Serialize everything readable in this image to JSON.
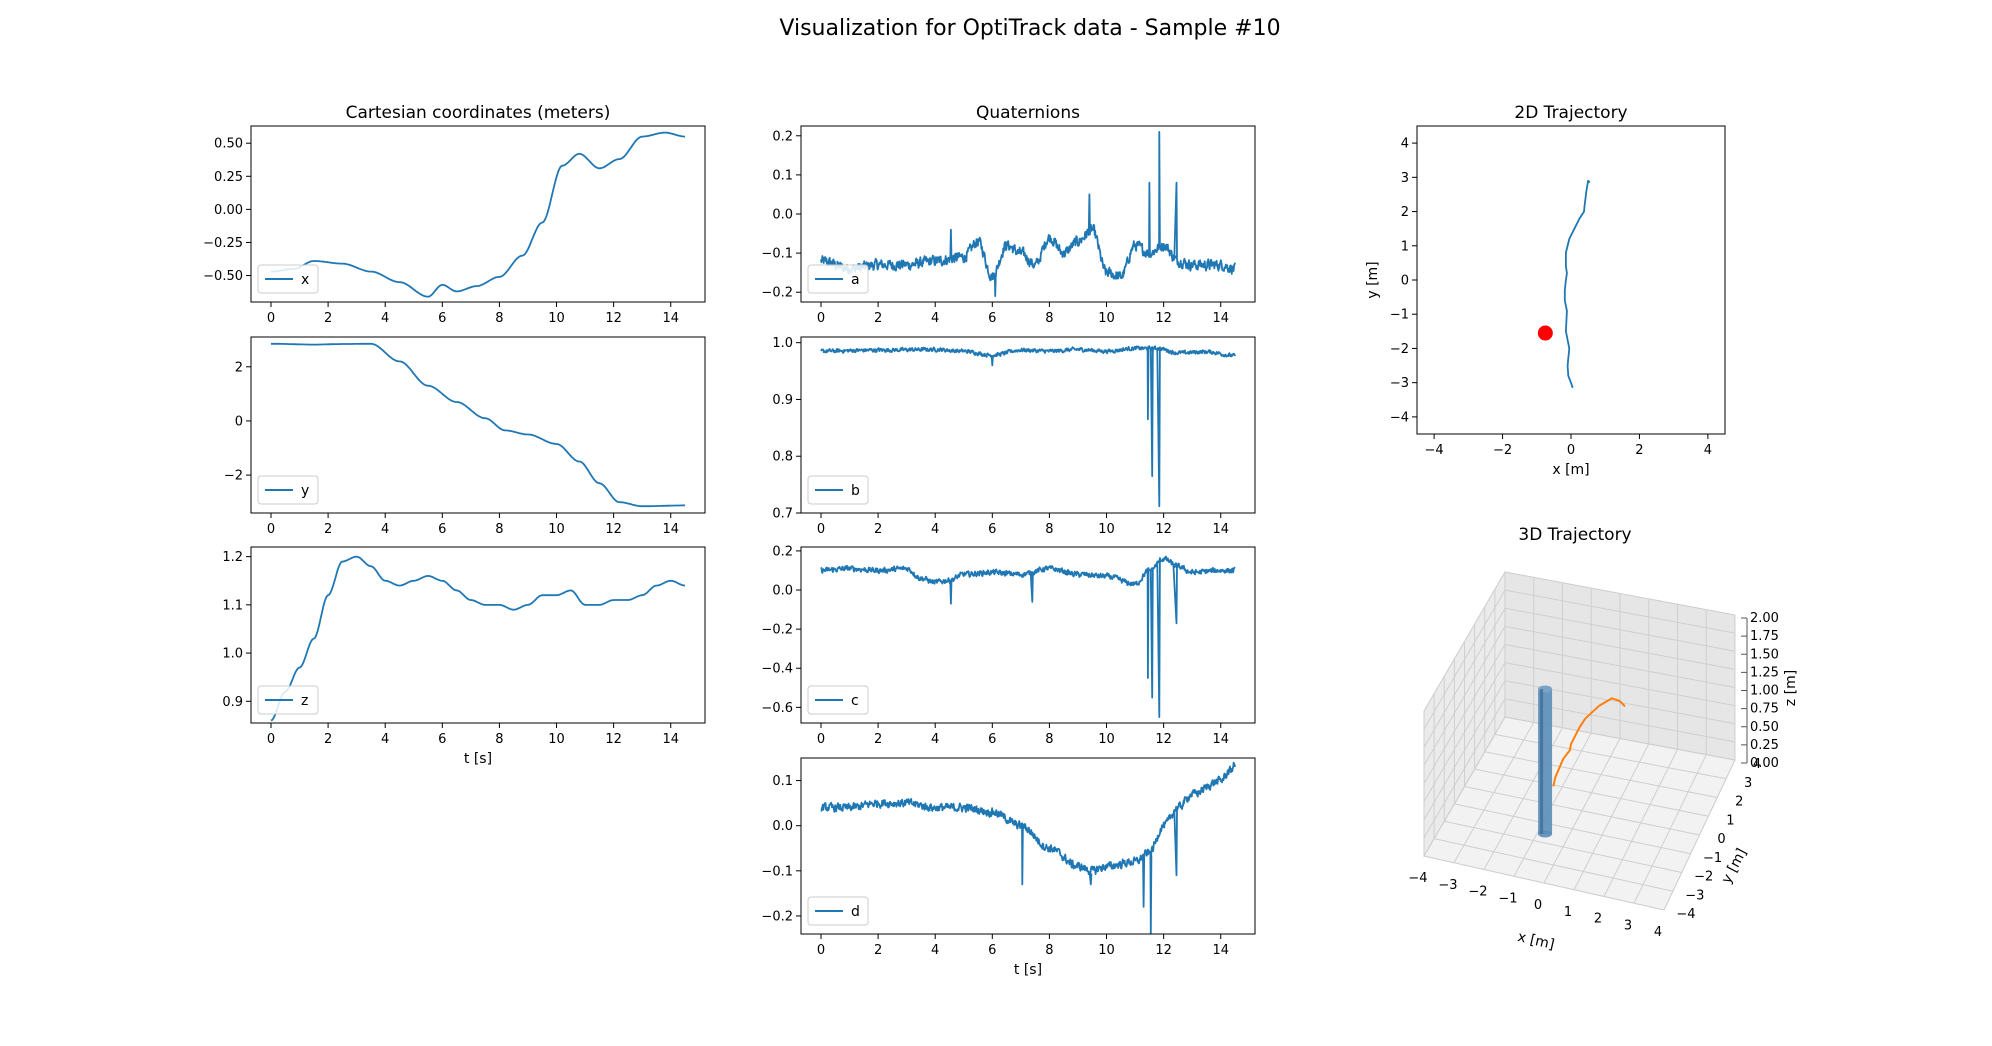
{
  "figure": {
    "title": "Visualization for OptiTrack data - Sample #10"
  },
  "colors": {
    "series": "#1f77b4",
    "trajectory3d": "#ff7f0e",
    "marker": "#ff0000",
    "cylinder": "#5b8db8"
  },
  "chart_data": [
    {
      "id": "cart-x",
      "type": "line",
      "title": "Cartesian coordinates (meters)",
      "xlabel": "",
      "ylabel": "",
      "xlim": [
        -0.7,
        15.2
      ],
      "ylim": [
        -0.7,
        0.63
      ],
      "xticks": [
        0,
        2,
        4,
        6,
        8,
        10,
        12,
        14
      ],
      "xtick_labels": [
        "0",
        "2",
        "4",
        "6",
        "8",
        "10",
        "12",
        "14"
      ],
      "yticks": [
        -0.5,
        -0.25,
        0,
        0.25,
        0.5
      ],
      "ytick_labels": [
        "−0.50",
        "−0.25",
        "0.00",
        "0.25",
        "0.50"
      ],
      "legend": "lower left",
      "series": [
        {
          "name": "x",
          "noise": 0,
          "x": [
            0,
            0.8,
            1.5,
            2.5,
            3.5,
            4.5,
            5.5,
            6.0,
            6.5,
            7.2,
            8.0,
            8.8,
            9.5,
            10.2,
            10.8,
            11.5,
            12.2,
            13.0,
            13.8,
            14.5
          ],
          "y": [
            -0.47,
            -0.45,
            -0.39,
            -0.41,
            -0.47,
            -0.55,
            -0.66,
            -0.57,
            -0.62,
            -0.58,
            -0.51,
            -0.35,
            -0.1,
            0.33,
            0.42,
            0.31,
            0.38,
            0.55,
            0.58,
            0.55
          ]
        }
      ]
    },
    {
      "id": "cart-y",
      "type": "line",
      "title": "",
      "xlabel": "",
      "ylabel": "",
      "xlim": [
        -0.7,
        15.2
      ],
      "ylim": [
        -3.4,
        3.1
      ],
      "xticks": [
        0,
        2,
        4,
        6,
        8,
        10,
        12,
        14
      ],
      "xtick_labels": [
        "0",
        "2",
        "4",
        "6",
        "8",
        "10",
        "12",
        "14"
      ],
      "yticks": [
        -2,
        0,
        2
      ],
      "ytick_labels": [
        "−2",
        "0",
        "2"
      ],
      "legend": "lower left",
      "series": [
        {
          "name": "y",
          "noise": 0,
          "x": [
            0,
            1.5,
            2.5,
            3.5,
            4.5,
            5.5,
            6.5,
            7.5,
            8.2,
            9.0,
            10.0,
            10.8,
            11.5,
            12.2,
            13.0,
            14.5
          ],
          "y": [
            2.85,
            2.82,
            2.84,
            2.85,
            2.2,
            1.3,
            0.7,
            0.1,
            -0.35,
            -0.5,
            -0.85,
            -1.5,
            -2.3,
            -3.0,
            -3.15,
            -3.12
          ]
        }
      ]
    },
    {
      "id": "cart-z",
      "type": "line",
      "title": "",
      "xlabel": "t [s]",
      "ylabel": "",
      "xlim": [
        -0.7,
        15.2
      ],
      "ylim": [
        0.855,
        1.22
      ],
      "xticks": [
        0,
        2,
        4,
        6,
        8,
        10,
        12,
        14
      ],
      "xtick_labels": [
        "0",
        "2",
        "4",
        "6",
        "8",
        "10",
        "12",
        "14"
      ],
      "yticks": [
        0.9,
        1.0,
        1.1,
        1.2
      ],
      "ytick_labels": [
        "0.9",
        "1.0",
        "1.1",
        "1.2"
      ],
      "legend": "lower left",
      "series": [
        {
          "name": "z",
          "noise": 0,
          "x": [
            0,
            0.5,
            1.0,
            1.5,
            2.0,
            2.5,
            3.0,
            3.5,
            4.0,
            4.5,
            5.0,
            5.5,
            6.0,
            6.5,
            7.0,
            7.5,
            8.0,
            8.5,
            9.0,
            9.5,
            10.0,
            10.5,
            11.0,
            11.5,
            12.0,
            12.5,
            13.0,
            13.5,
            14.0,
            14.5
          ],
          "y": [
            0.86,
            0.92,
            0.97,
            1.03,
            1.12,
            1.19,
            1.2,
            1.18,
            1.15,
            1.14,
            1.15,
            1.16,
            1.15,
            1.13,
            1.11,
            1.1,
            1.1,
            1.09,
            1.1,
            1.12,
            1.12,
            1.13,
            1.1,
            1.1,
            1.11,
            1.11,
            1.12,
            1.14,
            1.15,
            1.14
          ]
        }
      ]
    },
    {
      "id": "quat-a",
      "type": "line",
      "title": "Quaternions",
      "xlabel": "",
      "ylabel": "",
      "xlim": [
        -0.7,
        15.2
      ],
      "ylim": [
        -0.225,
        0.225
      ],
      "xticks": [
        0,
        2,
        4,
        6,
        8,
        10,
        12,
        14
      ],
      "xtick_labels": [
        "0",
        "2",
        "4",
        "6",
        "8",
        "10",
        "12",
        "14"
      ],
      "yticks": [
        -0.2,
        -0.1,
        0,
        0.1,
        0.2
      ],
      "ytick_labels": [
        "−0.2",
        "−0.1",
        "0.0",
        "0.1",
        "0.2"
      ],
      "legend": "lower left",
      "series": [
        {
          "name": "a",
          "noise": 0.012,
          "x": [
            0,
            1,
            2,
            3,
            4,
            5,
            5.5,
            6,
            6.5,
            7,
            7.5,
            8,
            8.5,
            9,
            9.5,
            10,
            10.5,
            11,
            11.5,
            12,
            12.5,
            13,
            14,
            14.5
          ],
          "y": [
            -0.12,
            -0.14,
            -0.13,
            -0.13,
            -0.12,
            -0.11,
            -0.07,
            -0.16,
            -0.08,
            -0.1,
            -0.13,
            -0.06,
            -0.1,
            -0.07,
            -0.04,
            -0.15,
            -0.16,
            -0.08,
            -0.1,
            -0.08,
            -0.12,
            -0.13,
            -0.13,
            -0.14
          ],
          "spikes": [
            [
              11.85,
              0.21
            ],
            [
              11.5,
              0.08
            ],
            [
              12.45,
              0.08
            ],
            [
              9.4,
              0.05
            ],
            [
              6.1,
              -0.21
            ],
            [
              4.55,
              -0.04
            ]
          ]
        }
      ]
    },
    {
      "id": "quat-b",
      "type": "line",
      "title": "",
      "xlabel": "",
      "ylabel": "",
      "xlim": [
        -0.7,
        15.2
      ],
      "ylim": [
        0.7,
        1.01
      ],
      "xticks": [
        0,
        2,
        4,
        6,
        8,
        10,
        12,
        14
      ],
      "xtick_labels": [
        "0",
        "2",
        "4",
        "6",
        "8",
        "10",
        "12",
        "14"
      ],
      "yticks": [
        0.7,
        0.8,
        0.9,
        1.0
      ],
      "ytick_labels": [
        "0.7",
        "0.8",
        "0.9",
        "1.0"
      ],
      "legend": "lower left",
      "series": [
        {
          "name": "b",
          "noise": 0.003,
          "x": [
            0,
            2,
            4,
            5,
            6,
            7,
            8,
            9,
            10,
            11,
            11.8,
            12.5,
            13.5,
            14.5
          ],
          "y": [
            0.985,
            0.987,
            0.988,
            0.985,
            0.978,
            0.987,
            0.985,
            0.988,
            0.985,
            0.99,
            0.99,
            0.982,
            0.984,
            0.977
          ],
          "spikes": [
            [
              11.45,
              0.865
            ],
            [
              11.6,
              0.765
            ],
            [
              11.85,
              0.712
            ],
            [
              6.0,
              0.96
            ]
          ]
        }
      ]
    },
    {
      "id": "quat-c",
      "type": "line",
      "title": "",
      "xlabel": "",
      "ylabel": "",
      "xlim": [
        -0.7,
        15.2
      ],
      "ylim": [
        -0.68,
        0.22
      ],
      "xticks": [
        0,
        2,
        4,
        6,
        8,
        10,
        12,
        14
      ],
      "xtick_labels": [
        "0",
        "2",
        "4",
        "6",
        "8",
        "10",
        "12",
        "14"
      ],
      "yticks": [
        -0.6,
        -0.4,
        -0.2,
        0,
        0.2
      ],
      "ytick_labels": [
        "−0.6",
        "−0.4",
        "−0.2",
        "0.0",
        "0.2"
      ],
      "legend": "lower left",
      "series": [
        {
          "name": "c",
          "noise": 0.012,
          "x": [
            0,
            1,
            2,
            3,
            3.5,
            4,
            4.5,
            5,
            6,
            7,
            8,
            9,
            10,
            11,
            11.5,
            12,
            12.5,
            13,
            14,
            14.5
          ],
          "y": [
            0.1,
            0.11,
            0.1,
            0.11,
            0.06,
            0.04,
            0.05,
            0.08,
            0.09,
            0.08,
            0.11,
            0.08,
            0.07,
            0.03,
            0.1,
            0.16,
            0.12,
            0.09,
            0.1,
            0.1
          ],
          "spikes": [
            [
              11.45,
              -0.45
            ],
            [
              11.6,
              -0.55
            ],
            [
              11.85,
              -0.65
            ],
            [
              12.45,
              -0.17
            ],
            [
              4.55,
              -0.07
            ],
            [
              7.4,
              -0.06
            ]
          ]
        }
      ]
    },
    {
      "id": "quat-d",
      "type": "line",
      "title": "",
      "xlabel": "t [s]",
      "ylabel": "",
      "xlim": [
        -0.7,
        15.2
      ],
      "ylim": [
        -0.24,
        0.15
      ],
      "xticks": [
        0,
        2,
        4,
        6,
        8,
        10,
        12,
        14
      ],
      "xtick_labels": [
        "0",
        "2",
        "4",
        "6",
        "8",
        "10",
        "12",
        "14"
      ],
      "yticks": [
        -0.2,
        -0.1,
        0,
        0.1
      ],
      "ytick_labels": [
        "−0.2",
        "−0.1",
        "0.0",
        "0.1"
      ],
      "legend": "lower left",
      "series": [
        {
          "name": "d",
          "noise": 0.008,
          "x": [
            0,
            1,
            2,
            3,
            4,
            5,
            6,
            7,
            8,
            9,
            9.5,
            10,
            11,
            11.5,
            12,
            12.5,
            13,
            14,
            14.3,
            14.5
          ],
          "y": [
            0.04,
            0.04,
            0.05,
            0.05,
            0.04,
            0.04,
            0.03,
            0.0,
            -0.05,
            -0.09,
            -0.1,
            -0.09,
            -0.08,
            -0.06,
            0.0,
            0.04,
            0.07,
            0.1,
            0.12,
            0.135
          ],
          "spikes": [
            [
              11.55,
              -0.24
            ],
            [
              11.3,
              -0.18
            ],
            [
              12.45,
              -0.11
            ],
            [
              7.05,
              -0.13
            ],
            [
              9.45,
              -0.13
            ]
          ]
        }
      ]
    },
    {
      "id": "traj-2d",
      "type": "line",
      "title": "2D Trajectory",
      "xlabel": "x [m]",
      "ylabel": "y [m]",
      "xlim": [
        -4.5,
        4.5
      ],
      "ylim": [
        -4.5,
        4.5
      ],
      "xticks": [
        -4,
        -2,
        0,
        2,
        4
      ],
      "xtick_labels": [
        "−4",
        "−2",
        "0",
        "2",
        "4"
      ],
      "yticks": [
        -4,
        -3,
        -2,
        -1,
        0,
        1,
        2,
        3,
        4
      ],
      "ytick_labels": [
        "−4",
        "−3",
        "−2",
        "−1",
        "0",
        "1",
        "2",
        "3",
        "4"
      ],
      "series": [
        {
          "name": "",
          "noise": 0,
          "x": [
            0.55,
            0.5,
            0.45,
            0.4,
            0.38,
            0.25,
            0.1,
            -0.05,
            -0.15,
            -0.15,
            -0.12,
            -0.15,
            -0.18,
            -0.18,
            -0.12,
            -0.15,
            -0.05,
            -0.1,
            -0.08,
            0.0,
            0.05
          ],
          "y": [
            2.85,
            2.9,
            2.6,
            2.2,
            2.0,
            1.8,
            1.5,
            1.2,
            0.8,
            0.4,
            0.2,
            0.0,
            -0.3,
            -0.6,
            -0.9,
            -1.5,
            -2.0,
            -2.5,
            -2.8,
            -3.0,
            -3.15
          ]
        }
      ],
      "points": [
        {
          "x": -0.75,
          "y": -1.55
        }
      ]
    },
    {
      "id": "traj-3d",
      "type": "line",
      "title": "3D Trajectory",
      "xlabel": "x [m]",
      "ylabel": "y [m]",
      "zlabel": "z [m]",
      "xlim": [
        -4,
        4
      ],
      "ylim": [
        -4,
        4
      ],
      "zlim": [
        0,
        2
      ],
      "xticks": [
        -4,
        -3,
        -2,
        -1,
        0,
        1,
        2,
        3,
        4
      ],
      "xtick_labels": [
        "−4",
        "−3",
        "−2",
        "−1",
        "0",
        "1",
        "2",
        "3",
        "4"
      ],
      "yticks": [
        -4,
        -3,
        -2,
        -1,
        0,
        1,
        2,
        3,
        4
      ],
      "ytick_labels": [
        "−4",
        "−3",
        "−2",
        "−1",
        "0",
        "1",
        "2",
        "3",
        "4"
      ],
      "zticks": [
        0,
        0.25,
        0.5,
        0.75,
        1.0,
        1.25,
        1.5,
        1.75,
        2.0
      ],
      "ztick_labels": [
        "0.00",
        "0.25",
        "0.50",
        "0.75",
        "1.00",
        "1.25",
        "1.50",
        "1.75",
        "2.00"
      ],
      "cylinder": {
        "x": -0.75,
        "y": -1.55,
        "z0": 0,
        "z1": 2.0
      },
      "series": [
        {
          "name": "",
          "noise": 0,
          "x": [
            0.55,
            0.45,
            0.38,
            0.1,
            -0.15,
            -0.15,
            -0.18,
            -0.12,
            -0.15,
            -0.1,
            0.0,
            0.05
          ],
          "y": [
            2.85,
            2.6,
            2.0,
            1.5,
            0.8,
            0.2,
            -0.6,
            -0.9,
            -1.5,
            -2.5,
            -3.0,
            -3.15
          ],
          "z": [
            0.86,
            1.0,
            1.19,
            1.18,
            1.14,
            1.16,
            1.11,
            1.1,
            1.12,
            1.1,
            1.11,
            1.14
          ]
        }
      ]
    }
  ]
}
